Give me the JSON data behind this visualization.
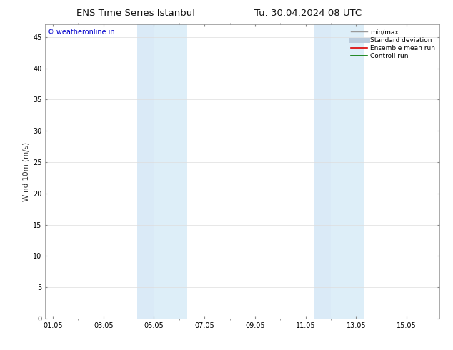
{
  "title_left": "ENS Time Series Istanbul",
  "title_right": "Tu. 30.04.2024 08 UTC",
  "ylabel": "Wind 10m (m/s)",
  "watermark": "© weatheronline.in",
  "watermark_color": "#0000cc",
  "background_color": "#ffffff",
  "plot_bg_color": "#ffffff",
  "ylim": [
    0,
    47
  ],
  "yticks": [
    0,
    5,
    10,
    15,
    20,
    25,
    30,
    35,
    40,
    45
  ],
  "x_tick_labels": [
    "01.05",
    "03.05",
    "05.05",
    "07.05",
    "09.05",
    "11.05",
    "13.05",
    "15.05"
  ],
  "x_tick_positions": [
    0,
    2,
    4,
    6,
    8,
    10,
    12,
    14
  ],
  "xlim": [
    -0.3,
    15.3
  ],
  "shaded_regions": [
    {
      "x_start": 3.33,
      "x_end": 4.0,
      "color": "#daeaf7"
    },
    {
      "x_start": 4.0,
      "x_end": 5.33,
      "color": "#ddeef8"
    },
    {
      "x_start": 10.33,
      "x_end": 11.0,
      "color": "#daeaf7"
    },
    {
      "x_start": 11.0,
      "x_end": 12.33,
      "color": "#ddeef8"
    }
  ],
  "legend_items": [
    {
      "label": "min/max",
      "color": "#999999",
      "linewidth": 1.0,
      "linestyle": "-"
    },
    {
      "label": "Standard deviation",
      "color": "#bbccdd",
      "linewidth": 5,
      "linestyle": "-"
    },
    {
      "label": "Ensemble mean run",
      "color": "#dd0000",
      "linewidth": 1.2,
      "linestyle": "-"
    },
    {
      "label": "Controll run",
      "color": "#007700",
      "linewidth": 1.2,
      "linestyle": "-"
    }
  ],
  "fig_width": 6.34,
  "fig_height": 4.9,
  "dpi": 100
}
